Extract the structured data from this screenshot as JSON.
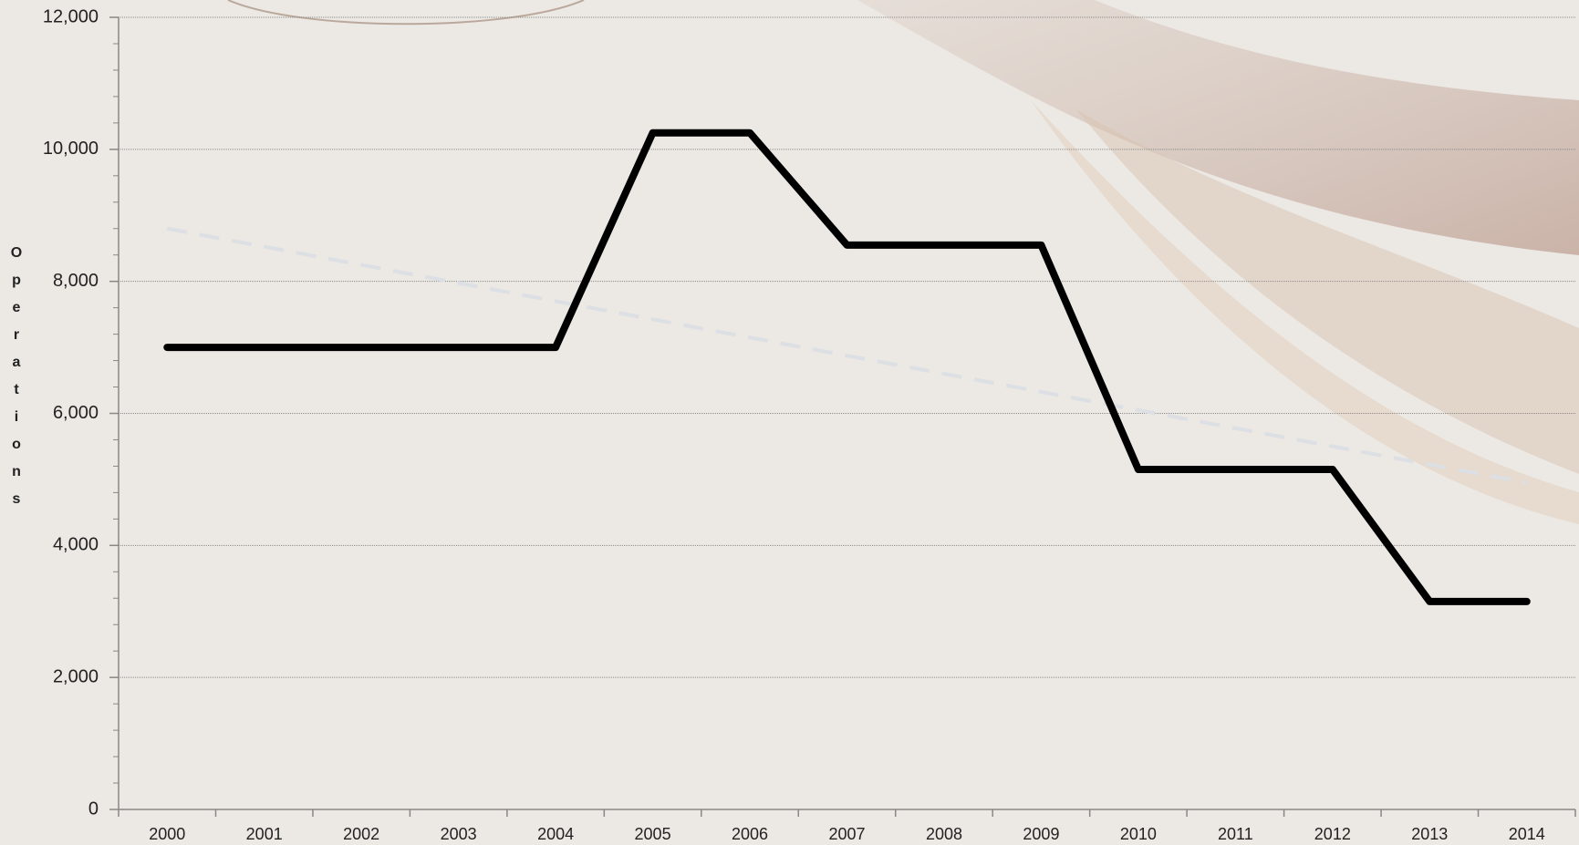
{
  "chart_data": {
    "type": "line",
    "y_label": "Operations",
    "categories": [
      "2000",
      "2001",
      "2002",
      "2003",
      "2004",
      "2005",
      "2006",
      "2007",
      "2008",
      "2009",
      "2010",
      "2011",
      "2012",
      "2013",
      "2014"
    ],
    "series": [
      {
        "name": "Operations",
        "color": "#000000",
        "values": [
          7000,
          7000,
          7000,
          7000,
          7000,
          10250,
          10250,
          8550,
          8550,
          8550,
          5150,
          5150,
          5150,
          3150,
          3150
        ]
      }
    ],
    "trendline": {
      "color": "#dcdfe3",
      "values": [
        8800,
        4950
      ]
    },
    "ylim": [
      0,
      12000
    ],
    "yticks": [
      0,
      {
        "value": 2000,
        "label": "2,000"
      },
      {
        "value": 4000,
        "label": "4,000"
      },
      {
        "value": 6000,
        "label": "6,000"
      },
      {
        "value": 8000,
        "label": "8,000"
      },
      {
        "value": 10000,
        "label": "10,000"
      },
      {
        "value": 12000,
        "label": "12,000"
      }
    ],
    "yminor_step": 400,
    "grid": true
  }
}
